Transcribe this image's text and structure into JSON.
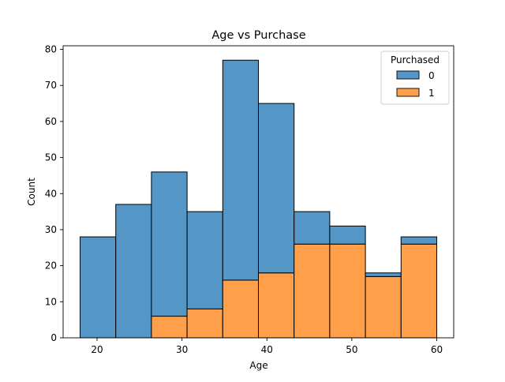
{
  "chart_data": {
    "type": "bar",
    "stacked": true,
    "title": "Age vs Purchase",
    "xlabel": "Age",
    "ylabel": "Count",
    "xlim": [
      16.0,
      62.0
    ],
    "ylim": [
      0,
      81
    ],
    "x_ticks": [
      20,
      30,
      40,
      50,
      60
    ],
    "y_ticks": [
      0,
      10,
      20,
      30,
      40,
      50,
      60,
      70,
      80
    ],
    "bin_edges": [
      18.0,
      22.2,
      26.4,
      30.6,
      34.8,
      39.0,
      43.2,
      47.4,
      51.6,
      55.8,
      60.0
    ],
    "legend": {
      "title": "Purchased",
      "placement": "top-right"
    },
    "series": [
      {
        "name": "1",
        "color": "#ff9f4a",
        "values": [
          0,
          0,
          6,
          8,
          16,
          18,
          26,
          26,
          17,
          26
        ]
      },
      {
        "name": "0",
        "color": "#5497c7",
        "values": [
          28,
          37,
          40,
          27,
          61,
          47,
          9,
          5,
          1,
          2
        ]
      }
    ]
  }
}
